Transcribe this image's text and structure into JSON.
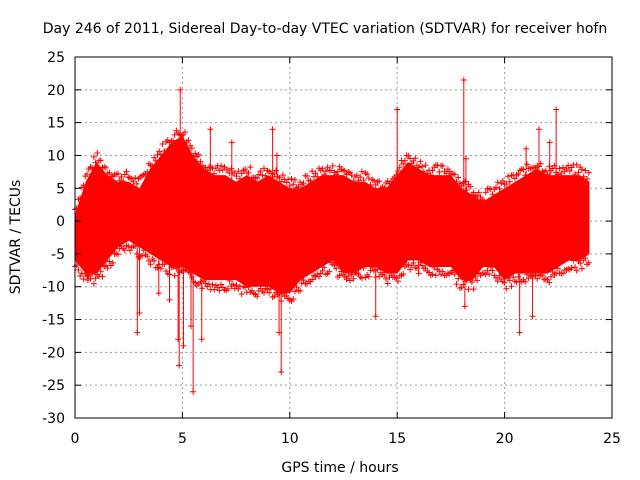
{
  "chart_data": {
    "type": "scatter",
    "title": "Day 246 of 2011, Sidereal Day-to-day VTEC variation (SDTVAR) for receiver hofn",
    "xlabel": "GPS time / hours",
    "ylabel": "SDTVAR / TECUs",
    "xlim": [
      0,
      25
    ],
    "ylim": [
      -30,
      25
    ],
    "x_ticks": [
      0,
      5,
      10,
      15,
      20,
      25
    ],
    "y_ticks": [
      -30,
      -25,
      -20,
      -15,
      -10,
      -5,
      0,
      5,
      10,
      15,
      20,
      25
    ],
    "grid": true,
    "color": "#ff0000",
    "marker": "+",
    "series": [
      {
        "name": "SDTVAR",
        "envelope": {
          "x": [
            0,
            0.5,
            1,
            1.5,
            2,
            2.5,
            3,
            3.5,
            4,
            4.5,
            5,
            5.5,
            6,
            6.5,
            7,
            7.5,
            8,
            8.5,
            9,
            9.5,
            10,
            10.5,
            11,
            11.5,
            12,
            12.5,
            13,
            13.5,
            14,
            14.5,
            15,
            15.5,
            16,
            16.5,
            17,
            17.5,
            18,
            18.5,
            19,
            19.5,
            20,
            20.5,
            21,
            21.5,
            22,
            22.5,
            23,
            23.5,
            23.95
          ],
          "upper": [
            1,
            6,
            9,
            7,
            6,
            6,
            5,
            8,
            10,
            12,
            13,
            10,
            8,
            7,
            7,
            6,
            7,
            6,
            7,
            6,
            5,
            5,
            6,
            7,
            7,
            7,
            6,
            6,
            5,
            5,
            7,
            9,
            8,
            7,
            7,
            7,
            5,
            4,
            3,
            4,
            5,
            6,
            7,
            8,
            7,
            7,
            7,
            7,
            6
          ],
          "lower": [
            -6,
            -8,
            -8,
            -6,
            -4,
            -3,
            -4,
            -5,
            -6,
            -7,
            -7,
            -8,
            -9,
            -9,
            -9,
            -9,
            -10,
            -10,
            -10,
            -11,
            -11,
            -9,
            -8,
            -7,
            -6,
            -8,
            -8,
            -7,
            -7,
            -8,
            -8,
            -6,
            -6,
            -7,
            -7,
            -7,
            -9,
            -9,
            -7,
            -7,
            -9,
            -8,
            -8,
            -8,
            -8,
            -7,
            -6,
            -6,
            -5
          ]
        },
        "outliers": [
          {
            "x": 0.6,
            "y": -9
          },
          {
            "x": 1.4,
            "y": -6
          },
          {
            "x": 2.9,
            "y": -17
          },
          {
            "x": 3.0,
            "y": -14
          },
          {
            "x": 3.9,
            "y": -11
          },
          {
            "x": 4.4,
            "y": -12
          },
          {
            "x": 4.8,
            "y": -18
          },
          {
            "x": 4.85,
            "y": -22
          },
          {
            "x": 4.9,
            "y": 20
          },
          {
            "x": 5.05,
            "y": -19
          },
          {
            "x": 5.5,
            "y": -26
          },
          {
            "x": 5.4,
            "y": -16
          },
          {
            "x": 5.9,
            "y": -18
          },
          {
            "x": 6.3,
            "y": 14
          },
          {
            "x": 7.3,
            "y": 12
          },
          {
            "x": 9.2,
            "y": 14
          },
          {
            "x": 9.6,
            "y": -23
          },
          {
            "x": 9.5,
            "y": -17
          },
          {
            "x": 9.4,
            "y": 10
          },
          {
            "x": 14.0,
            "y": -14.5
          },
          {
            "x": 15.0,
            "y": 17
          },
          {
            "x": 16.0,
            "y": -8
          },
          {
            "x": 18.1,
            "y": 21.5
          },
          {
            "x": 18.2,
            "y": 9.5
          },
          {
            "x": 18.15,
            "y": -13
          },
          {
            "x": 18.2,
            "y": 6
          },
          {
            "x": 20.7,
            "y": -17
          },
          {
            "x": 21.3,
            "y": -14.5
          },
          {
            "x": 21.0,
            "y": 11
          },
          {
            "x": 21.6,
            "y": 14
          },
          {
            "x": 22.4,
            "y": 17
          },
          {
            "x": 22.1,
            "y": 12
          }
        ]
      }
    ]
  }
}
